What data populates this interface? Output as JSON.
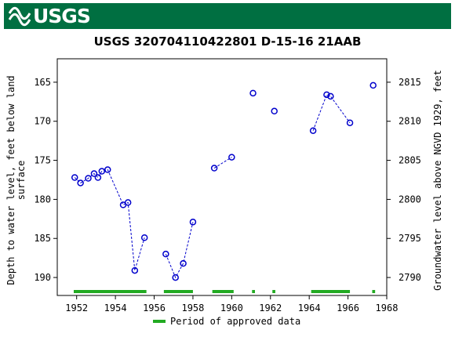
{
  "header": {
    "logo_text": "USGS",
    "brand_color": "#006f41"
  },
  "chart_data": {
    "type": "scatter",
    "title": "USGS 320704110422801 D-15-16 21AAB",
    "ylabel_left": [
      "Depth to water level, feet below land",
      "surface"
    ],
    "ylabel_right": "Groundwater level above NGVD 1929, feet",
    "xlim": [
      1951,
      1968
    ],
    "ylim_left_inverted": [
      162,
      192.3
    ],
    "ylim_right": [
      2818,
      2787.7
    ],
    "datum_offset": 2980,
    "x_ticks": [
      1952,
      1954,
      1956,
      1958,
      1960,
      1962,
      1964,
      1966,
      1968
    ],
    "y_ticks_left": [
      165,
      170,
      175,
      180,
      185,
      190
    ],
    "y_ticks_right": [
      2815,
      2810,
      2805,
      2800,
      2795,
      2790
    ],
    "series": [
      {
        "points": [
          {
            "x": 1951.9,
            "y": 177.2
          },
          {
            "x": 1952.2,
            "y": 177.9
          },
          {
            "x": 1952.6,
            "y": 177.3
          },
          {
            "x": 1952.9,
            "y": 176.7
          },
          {
            "x": 1953.1,
            "y": 177.2
          },
          {
            "x": 1953.3,
            "y": 176.4
          },
          {
            "x": 1953.6,
            "y": 176.2
          },
          {
            "x": 1954.4,
            "y": 180.7
          },
          {
            "x": 1954.65,
            "y": 180.4
          },
          {
            "x": 1955.0,
            "y": 189.1
          },
          {
            "x": 1955.5,
            "y": 184.9
          }
        ],
        "connected": true
      },
      {
        "points": [
          {
            "x": 1956.6,
            "y": 187.0
          },
          {
            "x": 1957.1,
            "y": 190.0
          },
          {
            "x": 1957.5,
            "y": 188.2
          },
          {
            "x": 1958.0,
            "y": 182.9
          }
        ],
        "connected": true
      },
      {
        "points": [
          {
            "x": 1959.1,
            "y": 176.0
          },
          {
            "x": 1960.0,
            "y": 174.6
          }
        ],
        "connected": true
      },
      {
        "points": [
          {
            "x": 1961.1,
            "y": 166.4
          }
        ],
        "connected": false
      },
      {
        "points": [
          {
            "x": 1962.2,
            "y": 168.7
          }
        ],
        "connected": false
      },
      {
        "points": [
          {
            "x": 1964.2,
            "y": 171.2
          },
          {
            "x": 1964.9,
            "y": 166.6
          },
          {
            "x": 1965.1,
            "y": 166.8
          },
          {
            "x": 1966.1,
            "y": 170.2
          }
        ],
        "connected": true
      },
      {
        "points": [
          {
            "x": 1967.3,
            "y": 165.4
          }
        ],
        "connected": false
      }
    ],
    "approved_periods": [
      [
        1951.85,
        1955.6
      ],
      [
        1956.5,
        1958.0
      ],
      [
        1959.0,
        1960.1
      ],
      [
        1961.05,
        1961.2
      ],
      [
        1962.1,
        1962.25
      ],
      [
        1964.1,
        1966.1
      ],
      [
        1967.25,
        1967.4
      ]
    ],
    "legend": {
      "label": "Period of approved data",
      "placement": "bottom-center"
    },
    "colors": {
      "points": "#0000cc",
      "line": "#0000cc",
      "approved": "#22aa22"
    }
  }
}
